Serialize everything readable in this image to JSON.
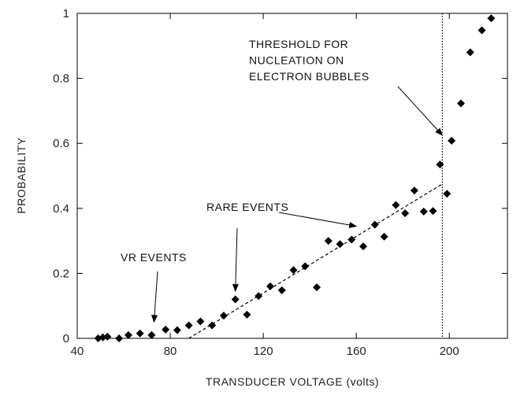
{
  "chart_data": {
    "type": "scatter",
    "xlabel": "TRANSDUCER VOLTAGE  (volts)",
    "ylabel": "PROBABILITY",
    "xlim": [
      40,
      225
    ],
    "ylim": [
      0,
      1
    ],
    "x_ticks": [
      40,
      80,
      120,
      160,
      200
    ],
    "y_ticks": [
      0,
      0.2,
      0.4,
      0.6,
      0.8,
      1
    ],
    "x_tick_labels": [
      "40",
      "80",
      "120",
      "160",
      "200"
    ],
    "y_tick_labels": [
      "0",
      "0.2",
      "0.4",
      "0.6",
      "0.8",
      "1"
    ],
    "grid": false,
    "series": [
      {
        "marker": "diamond",
        "color": "#000000",
        "points": [
          [
            49,
            0.0
          ],
          [
            51,
            0.003
          ],
          [
            53,
            0.005
          ],
          [
            58,
            0.0
          ],
          [
            62,
            0.01
          ],
          [
            67,
            0.015
          ],
          [
            72,
            0.01
          ],
          [
            78,
            0.027
          ],
          [
            83,
            0.025
          ],
          [
            88,
            0.04
          ],
          [
            93,
            0.052
          ],
          [
            98,
            0.04
          ],
          [
            103,
            0.07
          ],
          [
            108,
            0.12
          ],
          [
            113,
            0.073
          ],
          [
            118,
            0.13
          ],
          [
            123,
            0.16
          ],
          [
            128,
            0.148
          ],
          [
            133,
            0.21
          ],
          [
            138,
            0.222
          ],
          [
            143,
            0.157
          ],
          [
            148,
            0.3
          ],
          [
            153,
            0.29
          ],
          [
            158,
            0.304
          ],
          [
            163,
            0.283
          ],
          [
            168,
            0.35
          ],
          [
            172,
            0.313
          ],
          [
            177,
            0.41
          ],
          [
            181,
            0.385
          ],
          [
            185,
            0.455
          ],
          [
            189,
            0.39
          ],
          [
            193,
            0.392
          ],
          [
            196,
            0.535
          ],
          [
            199,
            0.445
          ],
          [
            201,
            0.608
          ],
          [
            205,
            0.723
          ],
          [
            209,
            0.88
          ],
          [
            214,
            0.948
          ],
          [
            218,
            0.985
          ]
        ]
      }
    ],
    "fit_line": {
      "style": "dashed",
      "x": [
        88,
        197
      ],
      "y": [
        0.0,
        0.475
      ]
    },
    "threshold_line": {
      "style": "dotted",
      "x": 197
    },
    "annotations": [
      {
        "lines": [
          "THRESHOLD FOR",
          "NUCLEATION ON",
          "ELECTRON BUBBLES"
        ],
        "arrow_to": [
          197,
          0.625
        ]
      },
      {
        "lines": [
          "RARE EVENTS"
        ],
        "arrow_to": [
          108,
          0.145
        ]
      },
      {
        "lines": [
          "RARE EVENTS"
        ],
        "arrow_to": [
          160,
          0.345
        ]
      },
      {
        "lines": [
          "VR EVENTS"
        ],
        "arrow_to": [
          73,
          0.05
        ]
      }
    ]
  }
}
